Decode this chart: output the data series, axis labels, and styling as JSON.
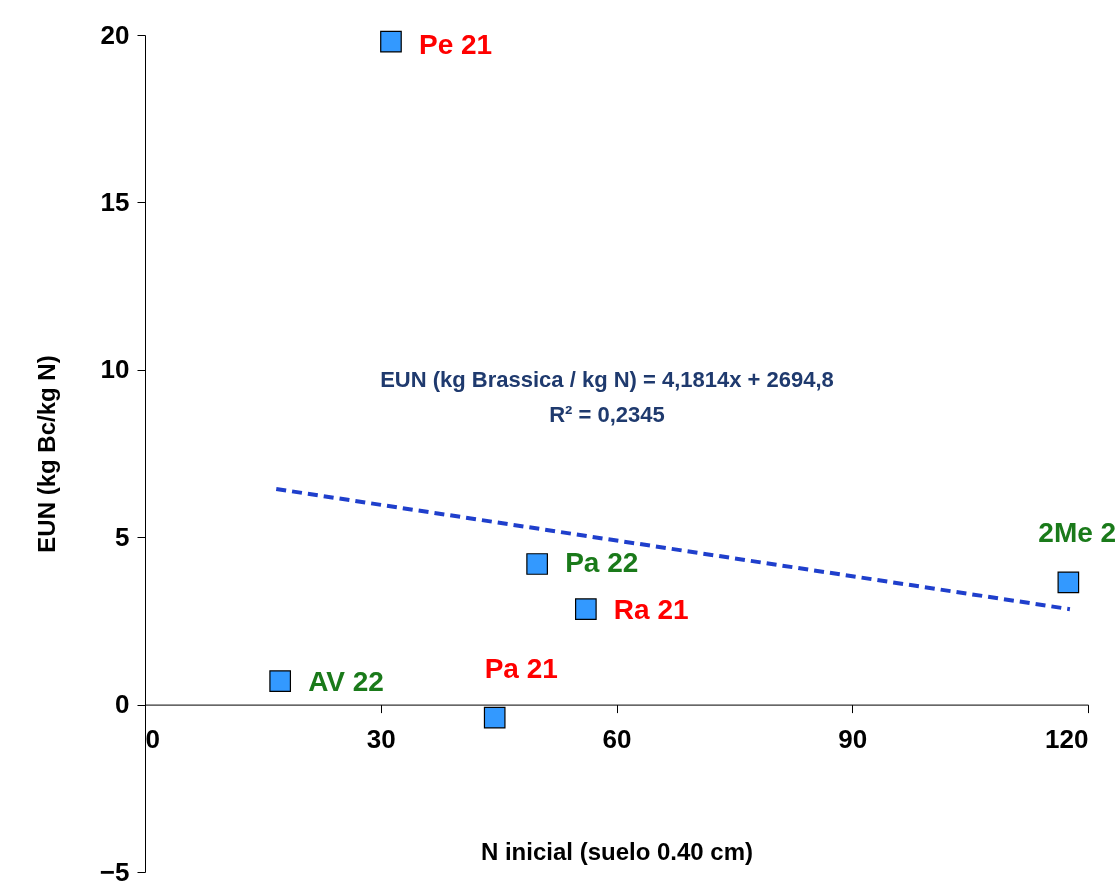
{
  "chart_data": {
    "type": "scatter",
    "xlabel": "N inicial (suelo 0.40 cm)",
    "ylabel": "EUN (kg Bc/kg N)",
    "xlim": [
      0,
      120
    ],
    "xticks": [
      0,
      30,
      60,
      90,
      120
    ],
    "ylim": [
      -5,
      20
    ],
    "yticks": [
      -5,
      0,
      5,
      10,
      15,
      20
    ],
    "grid": false,
    "marker": "square",
    "series": [
      {
        "color": "#3399ff",
        "x": [
          31.3,
          49.9,
          56.1,
          17.2,
          44.5,
          117.5
        ],
        "values": [
          19.8,
          4.2,
          2.85,
          0.7,
          -0.39,
          3.65
        ],
        "value_labels": [
          "Pe 21",
          "Pa 22",
          "Ra 21",
          "AV 22",
          "Pa 21",
          "2Me 2"
        ]
      },
      {
        "type": "line",
        "color": "#1f3fcc",
        "line_style": "dashed",
        "marker": "none",
        "x": [
          16.7,
          117.7
        ],
        "values": [
          6.44,
          2.85
        ]
      }
    ],
    "annotations": [
      "EUN (kg Brassica / kg N) = 4,1814x + 2694,8",
      "R² = 0,2345"
    ]
  }
}
